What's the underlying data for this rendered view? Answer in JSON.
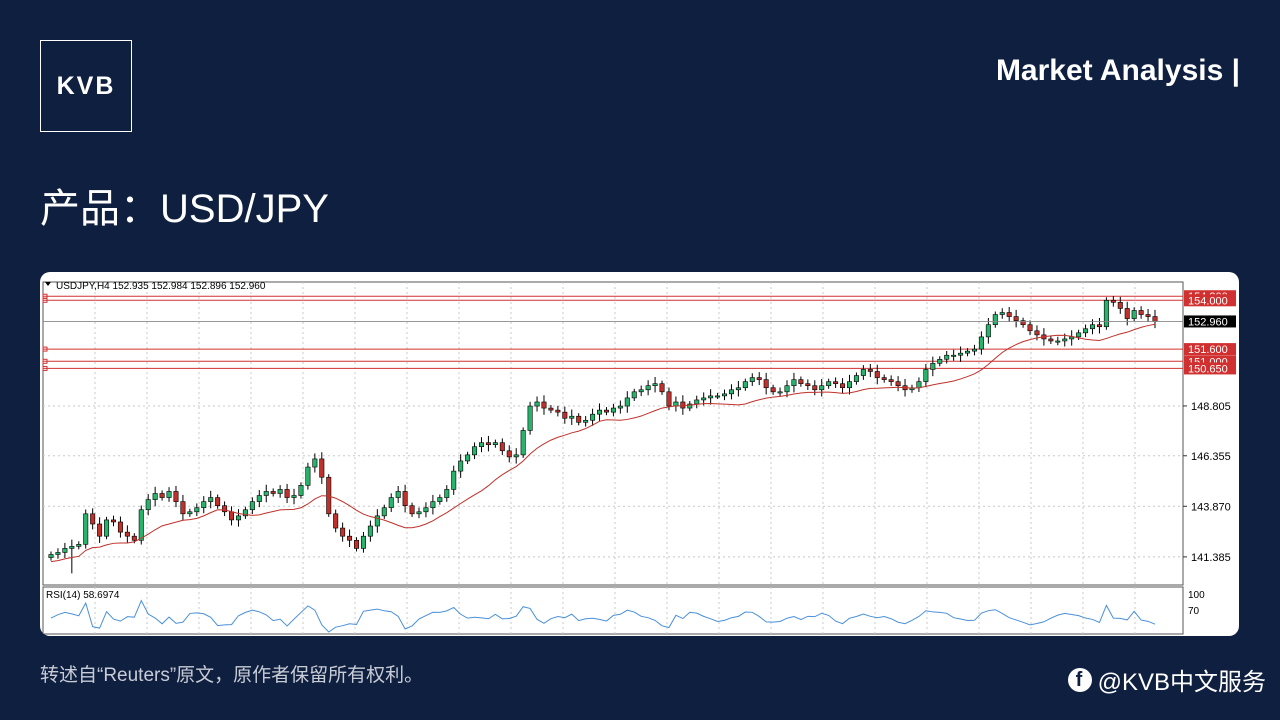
{
  "logo": {
    "text": "KVB"
  },
  "header": {
    "title": "Market Analysis |"
  },
  "product": {
    "title": "产品：USD/JPY"
  },
  "footer": {
    "note": "转述自“Reuters”原文，原作者保留所有权利。",
    "social_handle": "@KVB中文服务",
    "social_icon": "facebook-icon"
  },
  "chart_data": {
    "type": "candlestick",
    "title": "USDJPY,H4  152.935 152.984 152.896 152.960",
    "price_axis": {
      "ylim": [
        140.0,
        154.9
      ],
      "ticks": [
        "141.385",
        "143.870",
        "146.355",
        "148.805"
      ],
      "current_price": "152.960"
    },
    "horizontal_levels": [
      {
        "label": "154.200",
        "value": 154.2
      },
      {
        "label": "154.000",
        "value": 154.0
      },
      {
        "label": "151.600",
        "value": 151.6
      },
      {
        "label": "151.000",
        "value": 151.0
      },
      {
        "label": "150.650",
        "value": 150.65
      }
    ],
    "candles_close": [
      141.5,
      141.6,
      141.8,
      141.9,
      142.0,
      143.5,
      143.0,
      142.4,
      143.2,
      143.1,
      142.6,
      142.4,
      142.2,
      143.7,
      144.2,
      144.5,
      144.3,
      144.6,
      144.1,
      143.5,
      143.6,
      143.8,
      144.1,
      144.3,
      143.9,
      143.6,
      143.2,
      143.4,
      143.7,
      144.1,
      144.4,
      144.6,
      144.5,
      144.7,
      144.3,
      144.4,
      144.9,
      145.8,
      146.2,
      145.3,
      143.5,
      142.8,
      142.4,
      142.2,
      141.8,
      142.4,
      142.9,
      143.4,
      143.8,
      144.3,
      144.6,
      143.9,
      143.5,
      143.6,
      143.8,
      144.1,
      144.3,
      144.7,
      145.6,
      146.1,
      146.4,
      146.8,
      147.0,
      146.9,
      147.0,
      146.6,
      146.3,
      146.4,
      147.6,
      148.8,
      149.0,
      148.7,
      148.6,
      148.5,
      148.2,
      148.3,
      148.0,
      148.1,
      148.4,
      148.6,
      148.5,
      148.7,
      148.8,
      149.2,
      149.5,
      149.6,
      149.8,
      149.9,
      149.5,
      148.8,
      149.0,
      148.7,
      148.9,
      149.1,
      149.2,
      149.3,
      149.3,
      149.4,
      149.6,
      149.7,
      150.0,
      150.2,
      150.1,
      149.7,
      149.5,
      149.5,
      149.8,
      150.1,
      149.9,
      149.8,
      149.6,
      149.8,
      150.0,
      149.9,
      149.7,
      150.0,
      150.3,
      150.6,
      150.5,
      150.2,
      150.1,
      150.0,
      149.8,
      149.6,
      149.7,
      150.0,
      150.6,
      150.9,
      151.1,
      151.3,
      151.3,
      151.4,
      151.5,
      151.6,
      152.2,
      152.8,
      153.3,
      153.4,
      153.2,
      153.0,
      152.8,
      152.5,
      152.3,
      152.1,
      152.0,
      152.0,
      152.1,
      152.2,
      152.4,
      152.6,
      152.8,
      152.7,
      154.0,
      153.9,
      153.6,
      153.1,
      153.5,
      153.3,
      153.2,
      152.96
    ],
    "series": [
      {
        "name": "",
        "kind": "moving-average",
        "color": "#c0312b"
      }
    ],
    "indicator": {
      "title": "RSI(14) 58.6974",
      "ticks": [
        "100",
        "70"
      ],
      "color": "#4a90d9"
    },
    "colors": {
      "bull": "#27b36a",
      "bear": "#c0312b",
      "level_line": "#d03030",
      "grid": "#c8c8c8"
    },
    "grid": true
  }
}
